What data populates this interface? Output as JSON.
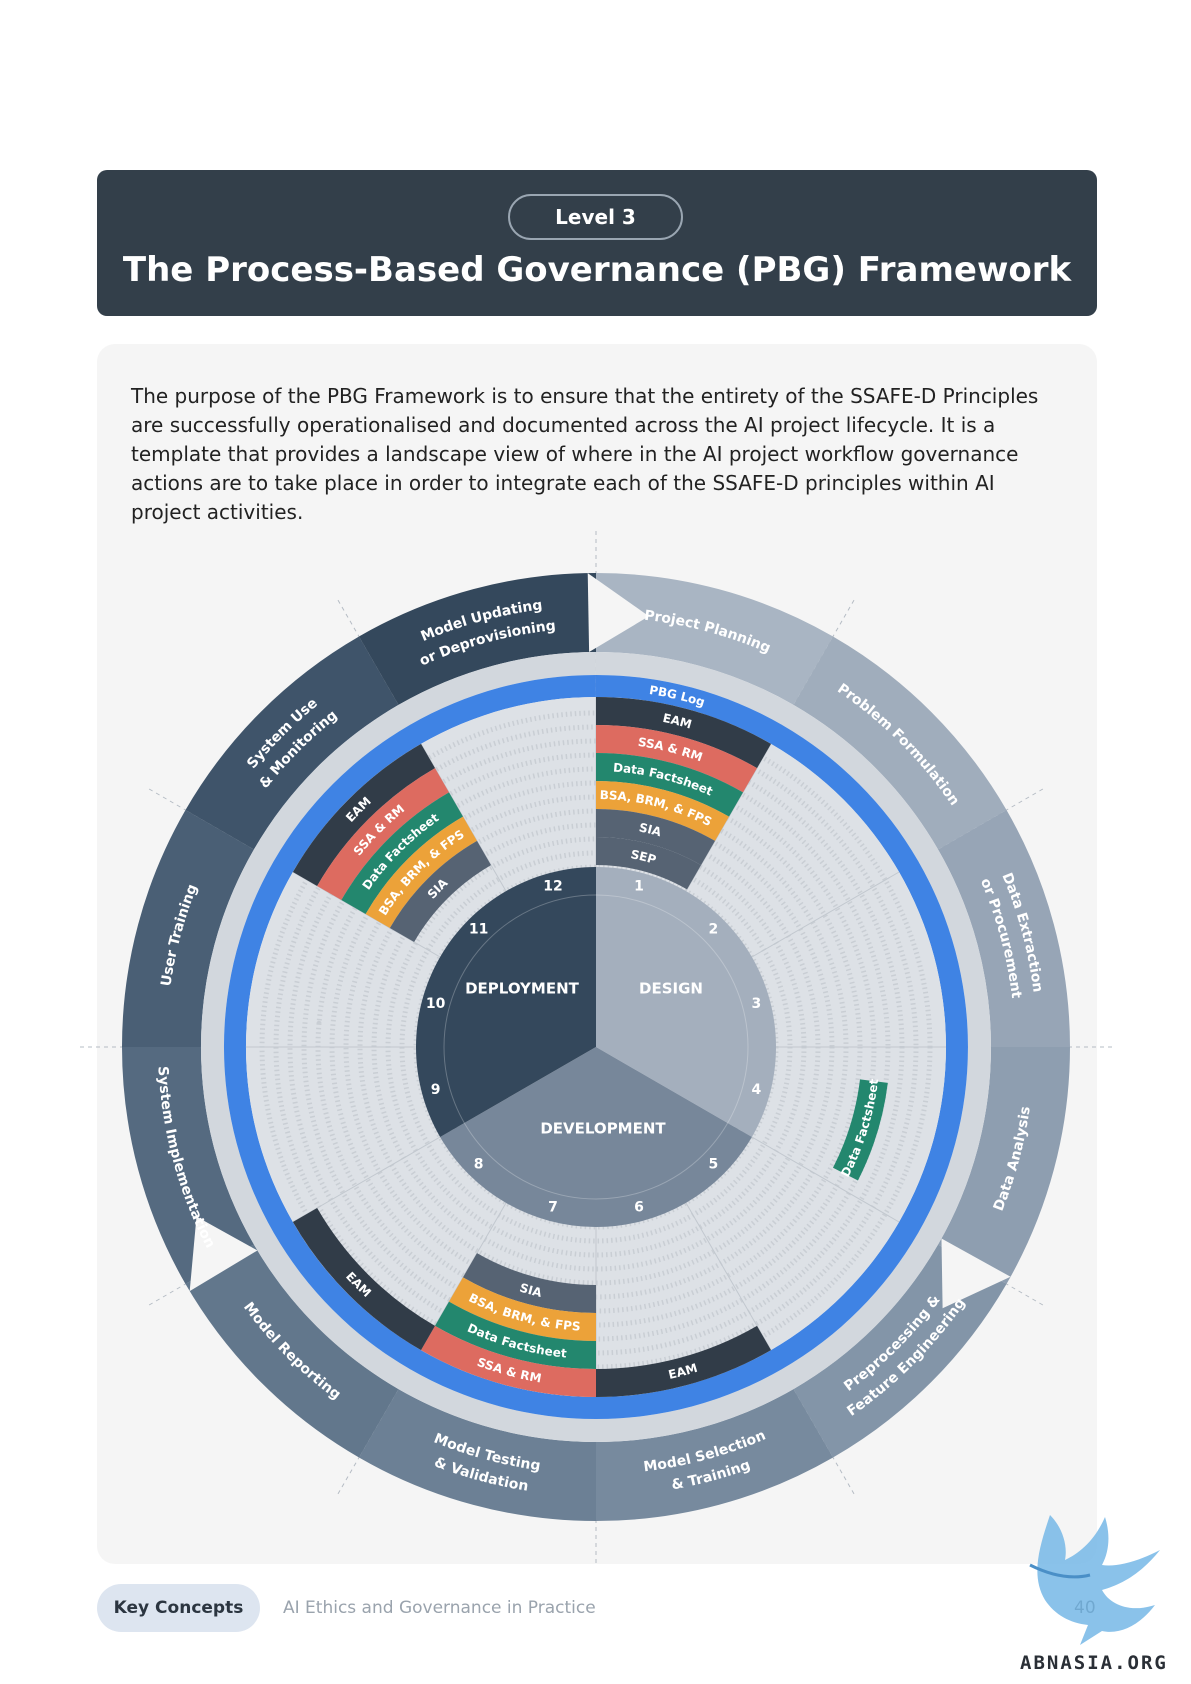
{
  "header": {
    "level": "Level 3",
    "title": "The Process-Based Governance (PBG) Framework"
  },
  "intro": "The purpose of the PBG Framework is to ensure that the entirety of the SSAFE-D Principles are successfully operationalised and documented across the AI project lifecycle. It is a template that provides a landscape view of where in the AI project workflow governance actions are to take place in order to integrate each of the SSAFE-D principles within AI project activities.",
  "wheel": {
    "phases": [
      "DESIGN",
      "DEVELOPMENT",
      "DEPLOYMENT"
    ],
    "stages": [
      {
        "num": "1",
        "label": "Project Planning"
      },
      {
        "num": "2",
        "label": "Problem Formulation"
      },
      {
        "num": "3",
        "label": "Data Extraction or Procurement"
      },
      {
        "num": "4",
        "label": "Data Analysis"
      },
      {
        "num": "5",
        "label": "Preprocessing & Feature Engineering"
      },
      {
        "num": "6",
        "label": "Model Selection & Training"
      },
      {
        "num": "7",
        "label": "Model Testing & Validation"
      },
      {
        "num": "8",
        "label": "Model Reporting"
      },
      {
        "num": "9",
        "label": "System Implementation"
      },
      {
        "num": "10",
        "label": "User Training"
      },
      {
        "num": "11",
        "label": "System Use & Monitoring"
      },
      {
        "num": "12",
        "label": "Model Updating or Deprovisioning"
      }
    ],
    "pbg_log": "PBG Log",
    "bands": {
      "eam": "EAM",
      "ssa_rm": "SSA & RM",
      "data_factsheet": "Data Factsheet",
      "bsa": "BSA, BRM, & FPS",
      "sia": "SIA",
      "sep": "SEP"
    },
    "colors": {
      "eam": "#313c48",
      "ssa_rm": "#dd6b60",
      "data_factsheet": "#23876e",
      "bsa": "#eca239",
      "sia": "#566373",
      "sep": "#566373",
      "pbg_log": "#3f83e4"
    }
  },
  "footer": {
    "pill": "Key Concepts",
    "text": "AI Ethics and Governance in Practice",
    "page": "40",
    "watermark": "ABNASIA.ORG"
  }
}
